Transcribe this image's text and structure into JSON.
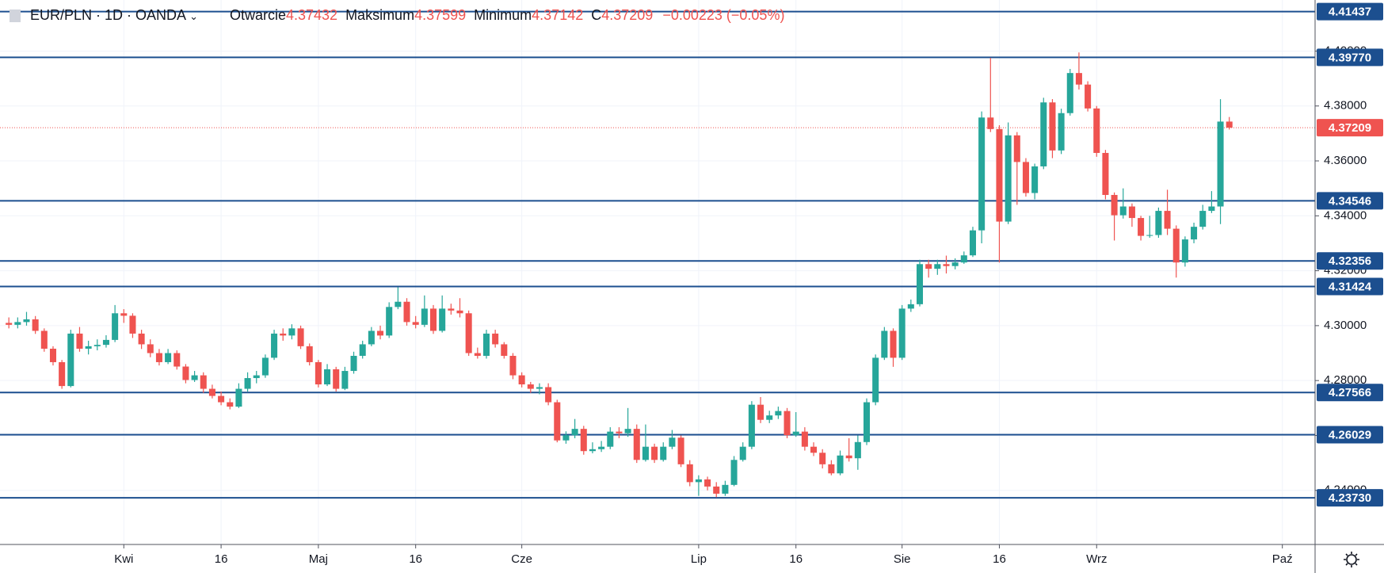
{
  "chart_data": {
    "type": "candlestick",
    "title": "EUR/PLN · 1D · OANDA",
    "ohlc_labels": [
      "Otwarcie",
      "Maksimum",
      "Minimum",
      "C"
    ],
    "change_label": "−0.00223 (−0.05%)",
    "up_color": "#26a69a",
    "down_color": "#ef5350",
    "level_color": "#1c4f8f",
    "grid": true,
    "xlim": [
      -1,
      147.7
    ],
    "ylim": [
      4.2203,
      4.4186
    ],
    "xticks": [
      {
        "value": 13,
        "label": "Kwi"
      },
      24,
      {
        "value": 35,
        "label": "Maj"
      },
      46,
      {
        "value": 58,
        "label": "Cze"
      },
      {
        "value": 78,
        "label": "Lip"
      },
      89,
      {
        "value": 101,
        "label": "Sie"
      },
      112,
      {
        "value": 123,
        "label": "Wrz"
      },
      {
        "value": 144,
        "label": "Paź"
      }
    ],
    "xtick_labels": [
      "Kwi",
      "16",
      "Maj",
      "16",
      "Cze",
      "Lip",
      "16",
      "Sie",
      "16",
      "Wrz",
      "Paź"
    ],
    "yticks": [
      {
        "value": 4.24,
        "label": "4.24000"
      },
      {
        "value": 4.26,
        "label": "4.26000"
      },
      {
        "value": 4.28,
        "label": "4.28000"
      },
      {
        "value": 4.3,
        "label": "4.30000"
      },
      {
        "value": 4.32,
        "label": "4.32000"
      },
      {
        "value": 4.34,
        "label": "4.34000"
      },
      {
        "value": 4.36,
        "label": "4.36000"
      },
      {
        "value": 4.38,
        "label": "4.38000"
      },
      {
        "value": 4.4,
        "label": "4.40000"
      }
    ],
    "levels": [
      4.41437,
      {
        "value": 4.3977,
        "label": "4.39770"
      },
      4.34546,
      4.32356,
      4.31424,
      4.27566,
      4.26029,
      {
        "value": 4.2373,
        "label": "4.23730"
      }
    ],
    "open": [
      4.301,
      4.3003,
      4.3013,
      4.3023,
      4.2981,
      4.2916,
      4.2867,
      4.278,
      4.2971,
      4.2916,
      4.2925,
      4.293,
      4.2948,
      4.3045,
      4.3036,
      4.2971,
      4.2932,
      4.29,
      4.2867,
      4.29,
      4.2851,
      4.2802,
      4.2819,
      4.277,
      4.2744,
      4.2721,
      4.2705,
      4.277,
      4.2809,
      4.2819,
      4.2883,
      4.2971,
      4.2964,
      4.299,
      4.2925,
      4.2867,
      4.2786,
      4.2841,
      4.277,
      4.2835,
      4.289,
      4.2932,
      4.2981,
      4.2964,
      4.3068,
      4.3087,
      4.3013,
      4.3003,
      4.3062,
      4.2981,
      4.3062,
      4.3055,
      4.3045,
      4.29,
      4.289,
      4.2971,
      4.2932,
      4.289,
      4.2819,
      4.2786,
      4.277,
      4.2776,
      4.2721,
      4.2582,
      4.2601,
      4.2624,
      4.2543,
      4.255,
      4.2559,
      4.2614,
      4.2608,
      4.2624,
      4.2511,
      4.2559,
      4.2511,
      4.2559,
      4.2592,
      4.2495,
      4.243,
      4.244,
      4.2414,
      4.2388,
      4.242,
      4.2511,
      4.2559,
      4.2712,
      4.2657,
      4.2673,
      4.2689,
      4.2601,
      4.2614,
      4.2559,
      4.2537,
      4.2495,
      4.2462,
      4.2527,
      4.2517,
      4.2576,
      4.2721,
      4.2883,
      4.2981,
      4.2883,
      4.3062,
      4.3078,
      4.3224,
      4.3207,
      4.3224,
      4.3217,
      4.323,
      4.3256,
      4.3347,
      4.3758,
      4.3716,
      4.3379,
      4.3693,
      4.3596,
      4.3483,
      4.358,
      4.3813,
      4.3638,
      4.3774,
      4.392,
      4.3878,
      4.3791,
      4.3629,
      4.3476,
      4.3402,
      4.3434,
      4.3392,
      4.3327,
      4.333,
      4.3418,
      4.3353,
      4.323,
      4.3314,
      4.336,
      4.3418,
      4.3434,
      4.37432
    ],
    "high": [
      4.303,
      4.303,
      4.305,
      4.3035,
      4.299,
      4.2925,
      4.2875,
      4.2985,
      4.2995,
      4.2945,
      4.295,
      4.2965,
      4.3075,
      4.306,
      4.3045,
      4.2985,
      4.295,
      4.2915,
      4.2915,
      4.291,
      4.286,
      4.2835,
      4.283,
      4.2785,
      4.276,
      4.2735,
      4.279,
      4.283,
      4.2835,
      4.2895,
      4.2985,
      4.299,
      4.3005,
      4.3,
      4.2935,
      4.2875,
      4.286,
      4.285,
      4.285,
      4.2905,
      4.2945,
      4.2995,
      4.3,
      4.3085,
      4.314,
      4.31,
      4.3035,
      4.311,
      4.3075,
      4.311,
      4.308,
      4.31,
      4.3055,
      4.292,
      4.2985,
      4.2985,
      4.294,
      4.29,
      4.283,
      4.2795,
      4.279,
      4.279,
      4.273,
      4.2615,
      4.266,
      4.2635,
      4.2575,
      4.258,
      4.263,
      4.263,
      4.27,
      4.264,
      4.264,
      4.257,
      4.2575,
      4.262,
      4.26,
      4.251,
      4.2455,
      4.245,
      4.243,
      4.2435,
      4.2525,
      4.2575,
      4.2725,
      4.274,
      4.269,
      4.2705,
      4.27,
      4.2685,
      4.263,
      4.2575,
      4.255,
      4.251,
      4.2545,
      4.259,
      4.26,
      4.2735,
      4.2895,
      4.2995,
      4.299,
      4.3075,
      4.3095,
      4.324,
      4.324,
      4.324,
      4.3255,
      4.3245,
      4.327,
      4.336,
      4.378,
      4.3975,
      4.373,
      4.374,
      4.3705,
      4.361,
      4.359,
      4.383,
      4.3825,
      4.379,
      4.3935,
      4.3995,
      4.389,
      4.38,
      4.364,
      4.3485,
      4.35,
      4.3445,
      4.34,
      4.34,
      4.343,
      4.3495,
      4.3365,
      4.3325,
      4.3375,
      4.344,
      4.349,
      4.3825,
      4.37599
    ],
    "low": [
      4.299,
      4.299,
      4.3,
      4.297,
      4.2905,
      4.2855,
      4.277,
      4.2775,
      4.2905,
      4.2895,
      4.291,
      4.292,
      4.294,
      4.301,
      4.2955,
      4.2915,
      4.2885,
      4.2855,
      4.286,
      4.284,
      4.279,
      4.2795,
      4.2755,
      4.2735,
      4.271,
      4.2695,
      4.27,
      4.276,
      4.279,
      4.281,
      4.2875,
      4.2945,
      4.295,
      4.2915,
      4.2855,
      4.2775,
      4.278,
      4.276,
      4.2765,
      4.2825,
      4.288,
      4.2925,
      4.295,
      4.2955,
      4.306,
      4.3,
      4.299,
      4.2995,
      4.297,
      4.2975,
      4.304,
      4.303,
      4.289,
      4.288,
      4.288,
      4.292,
      4.288,
      4.2805,
      4.2775,
      4.2755,
      4.275,
      4.271,
      4.2575,
      4.257,
      4.259,
      4.253,
      4.2535,
      4.254,
      4.255,
      4.259,
      4.2595,
      4.25,
      4.2505,
      4.25,
      4.2505,
      4.255,
      4.2485,
      4.2415,
      4.238,
      4.24,
      4.2375,
      4.238,
      4.2415,
      4.2505,
      4.255,
      4.2645,
      4.2645,
      4.266,
      4.259,
      4.2595,
      4.2545,
      4.2525,
      4.248,
      4.2455,
      4.2455,
      4.2505,
      4.2475,
      4.2565,
      4.271,
      4.2875,
      4.285,
      4.2875,
      4.305,
      4.307,
      4.3175,
      4.3185,
      4.319,
      4.3205,
      4.3225,
      4.325,
      4.33,
      4.3705,
      4.323,
      4.337,
      4.344,
      4.347,
      4.346,
      4.357,
      4.361,
      4.3625,
      4.3765,
      4.386,
      4.378,
      4.3615,
      4.346,
      4.331,
      4.339,
      4.336,
      4.331,
      4.332,
      4.332,
      4.333,
      4.3175,
      4.3215,
      4.33,
      4.335,
      4.341,
      4.337,
      4.37142
    ],
    "close": [
      4.3003,
      4.3013,
      4.3023,
      4.2981,
      4.2916,
      4.2867,
      4.278,
      4.2971,
      4.2916,
      4.2925,
      4.293,
      4.2948,
      4.3045,
      4.3036,
      4.2971,
      4.2932,
      4.29,
      4.2867,
      4.29,
      4.2851,
      4.2802,
      4.2819,
      4.277,
      4.2744,
      4.2721,
      4.2705,
      4.277,
      4.2809,
      4.2819,
      4.2883,
      4.2971,
      4.2964,
      4.299,
      4.2925,
      4.2867,
      4.2786,
      4.2841,
      4.277,
      4.2835,
      4.289,
      4.2932,
      4.2981,
      4.2964,
      4.3068,
      4.3087,
      4.3013,
      4.3003,
      4.3062,
      4.2981,
      4.3062,
      4.3055,
      4.3045,
      4.29,
      4.289,
      4.2971,
      4.2932,
      4.289,
      4.2819,
      4.2786,
      4.277,
      4.2776,
      4.2721,
      4.2582,
      4.2601,
      4.2624,
      4.2543,
      4.255,
      4.2559,
      4.2614,
      4.2608,
      4.2624,
      4.2511,
      4.2559,
      4.2511,
      4.2559,
      4.2592,
      4.2495,
      4.243,
      4.244,
      4.2414,
      4.2388,
      4.242,
      4.2511,
      4.2559,
      4.2712,
      4.2657,
      4.2673,
      4.2689,
      4.2601,
      4.2614,
      4.2559,
      4.2537,
      4.2495,
      4.2462,
      4.2527,
      4.2517,
      4.2576,
      4.2721,
      4.2883,
      4.2981,
      4.2883,
      4.3062,
      4.3078,
      4.3224,
      4.3207,
      4.3224,
      4.3217,
      4.323,
      4.3256,
      4.3347,
      4.3758,
      4.3716,
      4.3379,
      4.3693,
      4.3596,
      4.3483,
      4.358,
      4.3813,
      4.3638,
      4.3774,
      4.392,
      4.3878,
      4.3791,
      4.3629,
      4.3476,
      4.3402,
      4.3434,
      4.3392,
      4.3327,
      4.333,
      4.3418,
      4.3353,
      4.323,
      4.3314,
      4.336,
      4.3418,
      4.3434,
      4.37432,
      4.37209
    ]
  }
}
